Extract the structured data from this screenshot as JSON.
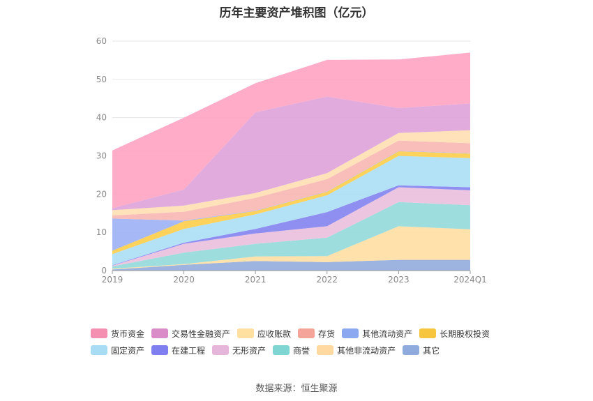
{
  "chart_data": {
    "type": "area",
    "stacked": true,
    "title": "历年主要资产堆积图（亿元）",
    "source": "数据来源：恒生聚源",
    "categories": [
      "2019",
      "2020",
      "2021",
      "2022",
      "2023",
      "2024Q1"
    ],
    "ylim": [
      0,
      60
    ],
    "yticks": [
      0,
      10,
      20,
      30,
      40,
      50,
      60
    ],
    "grid": true,
    "legend_position": "bottom",
    "series": [
      {
        "name": "其它",
        "color": "#8FAADC",
        "values": [
          0.3,
          1.5,
          2.5,
          2.2,
          2.8,
          2.8
        ]
      },
      {
        "name": "其他非流动资产",
        "color": "#FFDDA0",
        "values": [
          0.2,
          0.2,
          1.2,
          1.6,
          8.8,
          8.0
        ]
      },
      {
        "name": "商誉",
        "color": "#8FD8D8",
        "values": [
          0.6,
          3.0,
          3.3,
          4.8,
          6.3,
          6.3
        ]
      },
      {
        "name": "无形资产",
        "color": "#E9BEDD",
        "values": [
          0.2,
          2.3,
          2.7,
          3.0,
          3.9,
          3.9
        ]
      },
      {
        "name": "在建工程",
        "color": "#8080F0",
        "values": [
          0.1,
          0.3,
          1.2,
          3.7,
          0.5,
          0.8
        ]
      },
      {
        "name": "固定资产",
        "color": "#A8DDF5",
        "values": [
          2.9,
          3.6,
          3.8,
          4.4,
          7.7,
          7.6
        ]
      },
      {
        "name": "长期股权投资",
        "color": "#FFCC44",
        "values": [
          0.9,
          2.0,
          0.9,
          0.9,
          1.2,
          1.2
        ]
      },
      {
        "name": "其他流动资产",
        "color": "#9AAFF5",
        "values": [
          8.4,
          0.2,
          0.1,
          0.1,
          0.1,
          0.1
        ]
      },
      {
        "name": "存货",
        "color": "#F8B4B0",
        "values": [
          0.8,
          2.3,
          3.3,
          3.2,
          2.7,
          2.6
        ]
      },
      {
        "name": "应收账款",
        "color": "#FFDDB0",
        "values": [
          1.4,
          1.6,
          1.3,
          1.6,
          2.0,
          3.4
        ]
      },
      {
        "name": "交易性金融资产",
        "color": "#DDA0D8",
        "values": [
          0.5,
          4.2,
          21.1,
          20.0,
          6.5,
          7.0
        ]
      },
      {
        "name": "货币资金",
        "color": "#FFA0C0",
        "values": [
          15.1,
          18.8,
          7.6,
          9.6,
          12.7,
          13.3
        ]
      }
    ]
  },
  "legend": [
    {
      "name": "货币资金",
      "color": "#F48FB1"
    },
    {
      "name": "交易性金融资产",
      "color": "#D98CC8"
    },
    {
      "name": "应收账款",
      "color": "#FFE0A0"
    },
    {
      "name": "存货",
      "color": "#F5A49A"
    },
    {
      "name": "其他流动资产",
      "color": "#8CA8F0"
    },
    {
      "name": "长期股权投资",
      "color": "#F7C53E"
    },
    {
      "name": "固定资产",
      "color": "#A8DCF5"
    },
    {
      "name": "在建工程",
      "color": "#7F7FF0"
    },
    {
      "name": "无形资产",
      "color": "#E5B5DA"
    },
    {
      "name": "商誉",
      "color": "#7FD5D1"
    },
    {
      "name": "其他非流动资产",
      "color": "#FFD9A0"
    },
    {
      "name": "其它",
      "color": "#8FAADC"
    }
  ]
}
